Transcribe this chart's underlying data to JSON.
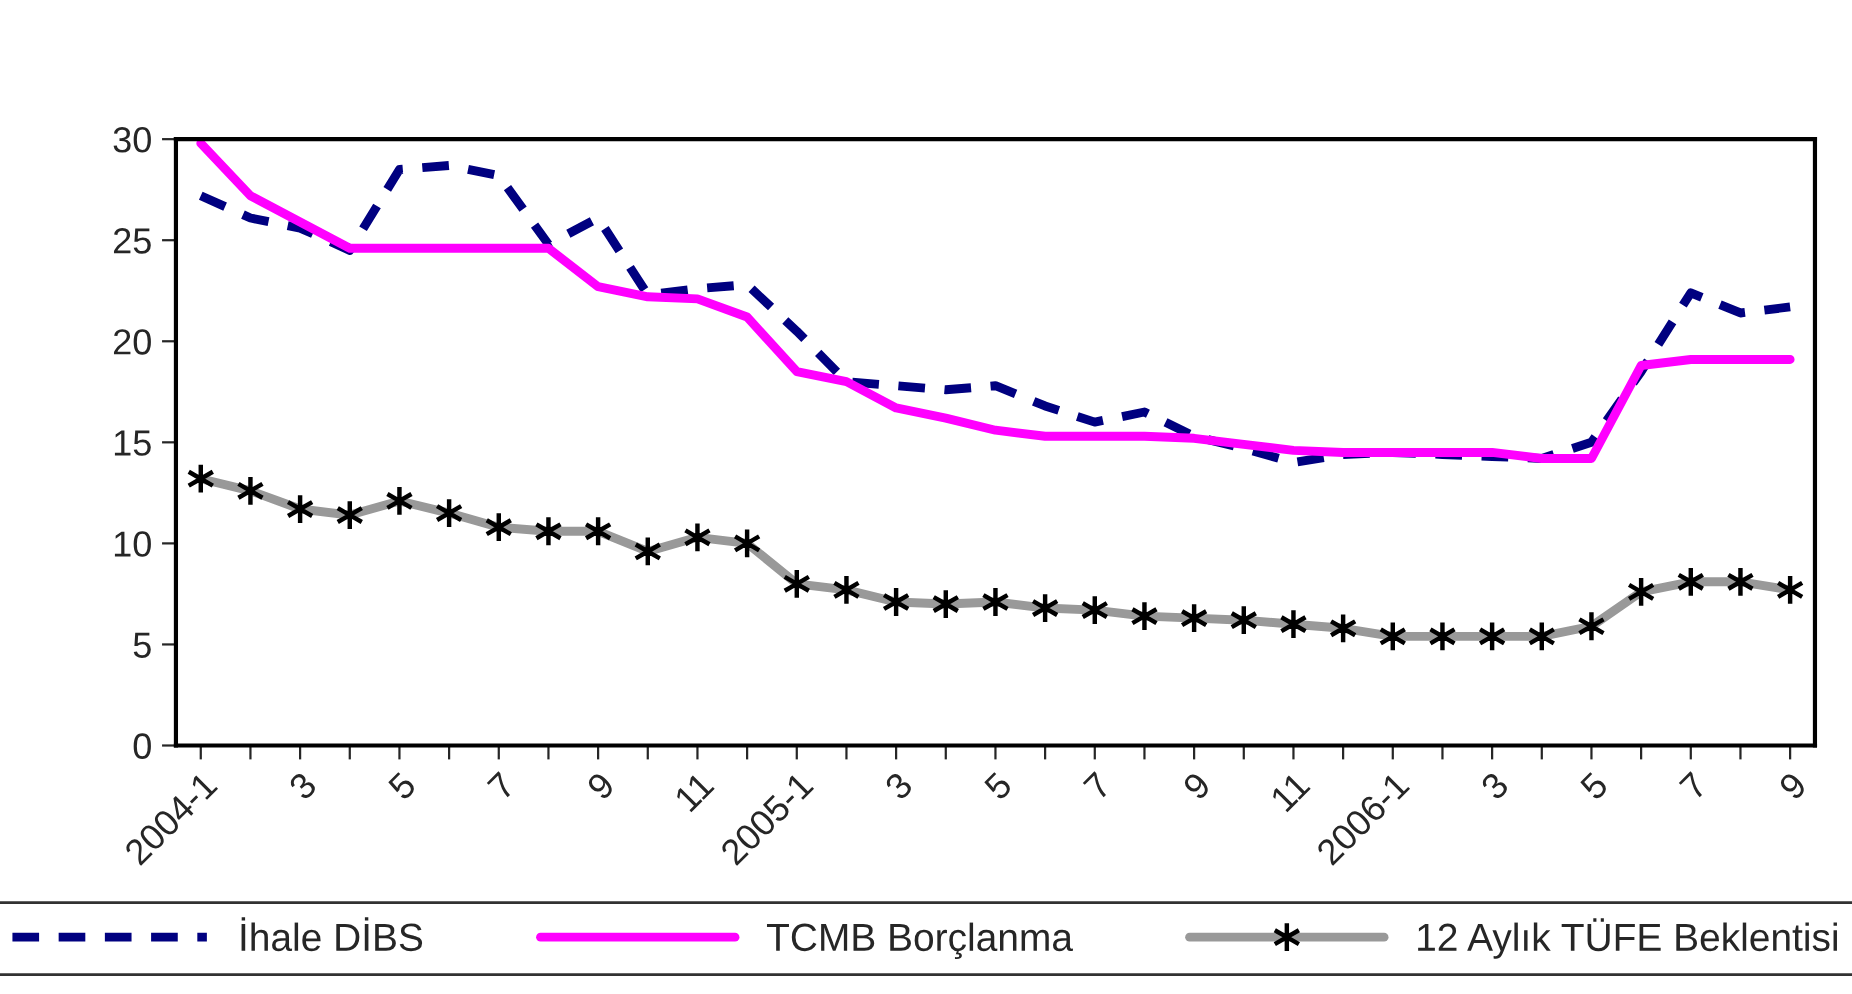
{
  "chart_data": {
    "type": "line",
    "categories": [
      "2004-1",
      null,
      "3",
      null,
      "5",
      null,
      "7",
      null,
      "9",
      null,
      "11",
      null,
      "2005-1",
      null,
      "3",
      null,
      "5",
      null,
      "7",
      null,
      "9",
      null,
      "11",
      null,
      "2006-1",
      null,
      "3",
      null,
      "5",
      null,
      "7",
      null,
      "9"
    ],
    "series": [
      {
        "name": "İhale DİBS",
        "color": "#000080",
        "line_style": "dashed",
        "marker": "none",
        "values": [
          27.2,
          26.1,
          25.6,
          24.5,
          28.5,
          28.7,
          28.2,
          24.8,
          26.1,
          22.3,
          22.6,
          22.8,
          20.5,
          18.0,
          17.8,
          17.6,
          17.8,
          16.8,
          16.0,
          16.5,
          15.3,
          14.7,
          14.0,
          14.4,
          14.5,
          14.4,
          14.3,
          14.2,
          15.0,
          18.5,
          22.4,
          21.4,
          21.7
        ]
      },
      {
        "name": "TCMB Borçlanma",
        "color": "#ff00ff",
        "line_style": "solid",
        "marker": "none",
        "values": [
          29.8,
          27.2,
          25.9,
          24.6,
          24.6,
          24.6,
          24.6,
          24.6,
          22.7,
          22.2,
          22.1,
          21.2,
          18.5,
          18.0,
          16.7,
          16.2,
          15.6,
          15.3,
          15.3,
          15.3,
          15.2,
          14.9,
          14.6,
          14.5,
          14.5,
          14.5,
          14.5,
          14.2,
          14.2,
          18.8,
          19.1,
          19.1,
          19.1
        ]
      },
      {
        "name": "12 Aylık TÜFE Beklentisi",
        "color": "#999999",
        "line_style": "solid",
        "marker": "cross",
        "values": [
          13.2,
          12.6,
          11.7,
          11.4,
          12.1,
          11.5,
          10.8,
          10.6,
          10.6,
          9.6,
          10.3,
          10.0,
          8.0,
          7.7,
          7.1,
          7.0,
          7.1,
          6.8,
          6.7,
          6.4,
          6.3,
          6.2,
          6.0,
          5.8,
          5.4,
          5.4,
          5.4,
          5.4,
          5.9,
          7.6,
          8.1,
          8.1,
          7.7
        ]
      }
    ],
    "ylim": [
      0,
      30
    ],
    "yticks": [
      0,
      5,
      10,
      15,
      20,
      25,
      30
    ],
    "grid": false,
    "legend": "bottom"
  }
}
